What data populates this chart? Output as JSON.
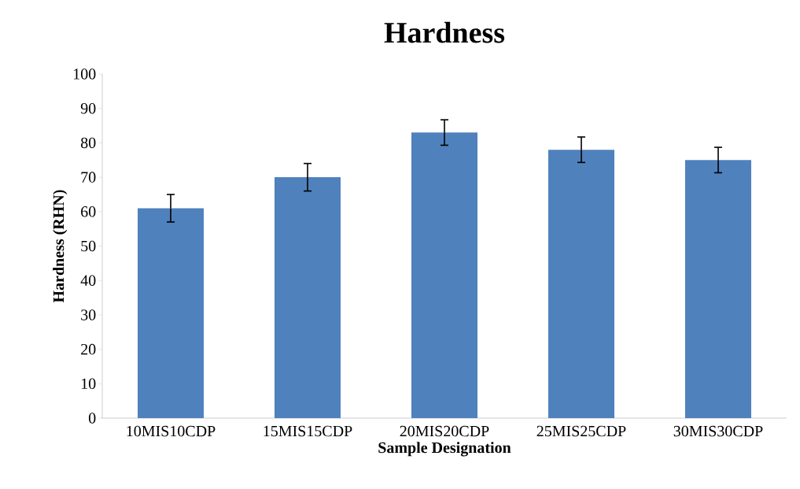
{
  "chart_data": {
    "type": "bar",
    "title": "Hardness",
    "xlabel": "Sample Designation",
    "ylabel": "Hardness (RHN)",
    "categories": [
      "10MIS10CDP",
      "15MIS15CDP",
      "20MIS20CDP",
      "25MIS25CDP",
      "30MIS30CDP"
    ],
    "values": [
      61,
      70,
      83,
      78,
      75
    ],
    "errors": [
      4,
      4,
      3.7,
      3.7,
      3.7
    ],
    "color": "#4f81bd",
    "ylim": [
      0,
      100
    ],
    "yticks": [
      0,
      10,
      20,
      30,
      40,
      50,
      60,
      70,
      80,
      90,
      100
    ],
    "grid": false
  }
}
